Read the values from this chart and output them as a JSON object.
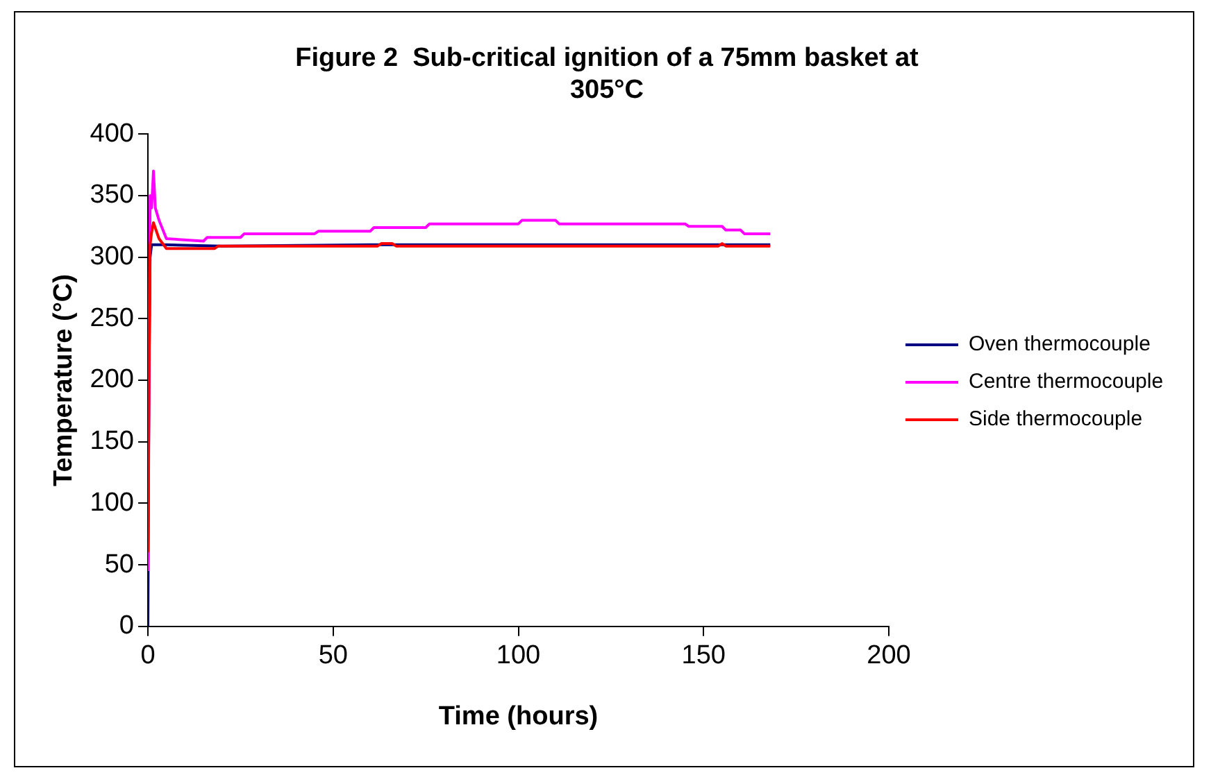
{
  "chart_data": {
    "type": "line",
    "title": "Figure 2  Sub-critical ignition of a 75mm basket at 305°C",
    "xlabel": "Time (hours)",
    "ylabel": "Temperature (°C)",
    "xlim": [
      0,
      200
    ],
    "xticks": [
      0,
      50,
      100,
      150,
      200
    ],
    "ylim": [
      0,
      400
    ],
    "yticks": [
      0,
      50,
      100,
      150,
      200,
      250,
      300,
      350,
      400
    ],
    "grid": false,
    "legend": "right",
    "marker": "none",
    "line_style": "solid",
    "series": [
      {
        "name": "Oven thermocouple",
        "color": "#000080",
        "x": [
          0,
          0.3,
          0.6,
          1,
          5,
          20,
          60,
          100,
          140,
          168
        ],
        "values": [
          0,
          200,
          300,
          310,
          310,
          309,
          310,
          310,
          310,
          310
        ]
      },
      {
        "name": "Centre thermocouple",
        "color": "#ff00ff",
        "x": [
          0,
          0.3,
          0.6,
          1,
          1.5,
          2,
          3,
          5,
          15,
          16,
          25,
          26,
          45,
          46,
          60,
          61,
          75,
          76,
          100,
          101,
          110,
          111,
          145,
          146,
          155,
          156,
          160,
          161,
          168
        ],
        "values": [
          45,
          200,
          350,
          340,
          370,
          340,
          330,
          315,
          313,
          316,
          316,
          319,
          319,
          321,
          321,
          324,
          324,
          327,
          327,
          330,
          330,
          327,
          327,
          325,
          325,
          322,
          322,
          319,
          319
        ]
      },
      {
        "name": "Side thermocouple",
        "color": "#ff0000",
        "x": [
          0,
          0.3,
          0.6,
          1,
          1.5,
          3,
          5,
          18,
          19,
          62,
          63,
          66,
          67,
          154,
          155,
          156,
          168
        ],
        "values": [
          60,
          200,
          310,
          320,
          328,
          315,
          307,
          307,
          309,
          309,
          311,
          311,
          309,
          309,
          311,
          309,
          309
        ]
      }
    ]
  }
}
